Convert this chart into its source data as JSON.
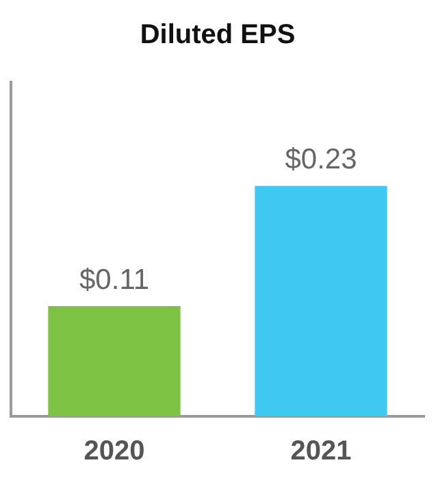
{
  "chart_data": {
    "type": "bar",
    "title": "Diluted EPS",
    "categories": [
      "2020",
      "2021"
    ],
    "values": [
      0.11,
      0.23
    ],
    "colors": [
      "#7dc242",
      "#3ec8f2"
    ],
    "value_labels": [
      "$0.11",
      "$0.23"
    ]
  }
}
